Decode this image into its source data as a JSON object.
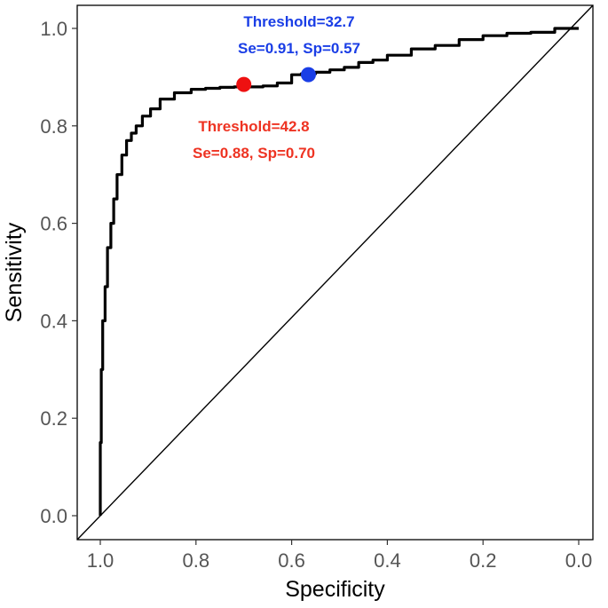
{
  "chart_data": {
    "type": "line",
    "xlabel": "Specificity",
    "ylabel": "Sensitivity",
    "xlim": [
      1.0,
      0.0
    ],
    "ylim": [
      0.0,
      1.0
    ],
    "x_reversed": true,
    "x_ticks": [
      1.0,
      0.8,
      0.6,
      0.4,
      0.2,
      0.0
    ],
    "x_tick_labels": [
      "1.0",
      "0.8",
      "0.6",
      "0.4",
      "0.2",
      "0.0"
    ],
    "y_ticks": [
      0.0,
      0.2,
      0.4,
      0.6,
      0.8,
      1.0
    ],
    "y_tick_labels": [
      "0.0",
      "0.2",
      "0.4",
      "0.6",
      "0.8",
      "1.0"
    ],
    "grid": false,
    "reference_line": {
      "x": [
        1.0,
        0.0
      ],
      "y": [
        0.0,
        1.0
      ],
      "color": "#000000"
    },
    "series": [
      {
        "color": "#000000",
        "x": [
          1.0,
          0.998,
          0.995,
          0.99,
          0.985,
          0.978,
          0.972,
          0.965,
          0.955,
          0.945,
          0.935,
          0.925,
          0.912,
          0.895,
          0.875,
          0.845,
          0.81,
          0.78,
          0.75,
          0.72,
          0.69,
          0.66,
          0.63,
          0.6,
          0.58,
          0.55,
          0.52,
          0.49,
          0.46,
          0.43,
          0.4,
          0.35,
          0.3,
          0.25,
          0.2,
          0.15,
          0.1,
          0.05,
          0.0
        ],
        "y": [
          0.0,
          0.15,
          0.3,
          0.4,
          0.47,
          0.55,
          0.6,
          0.65,
          0.7,
          0.74,
          0.77,
          0.785,
          0.8,
          0.82,
          0.835,
          0.855,
          0.868,
          0.875,
          0.877,
          0.879,
          0.88,
          0.88,
          0.882,
          0.888,
          0.905,
          0.907,
          0.91,
          0.915,
          0.92,
          0.93,
          0.935,
          0.945,
          0.958,
          0.965,
          0.977,
          0.985,
          0.99,
          0.992,
          1.0
        ]
      }
    ],
    "points": [
      {
        "x": 0.7,
        "y": 0.885,
        "color": "#ee1111"
      },
      {
        "x": 0.565,
        "y": 0.905,
        "color": "#1a3ee6"
      }
    ],
    "annotations": [
      {
        "lines": [
          "Threshold=32.7",
          "Se=0.91, Sp=0.57"
        ],
        "color": "#1a3ee6",
        "x": 0.57,
        "y": 1.0,
        "placement": "above-right-point"
      },
      {
        "lines": [
          "Threshold=42.8",
          "Se=0.88, Sp=0.70"
        ],
        "color": "#ee3322",
        "x": 0.7,
        "y": 0.8,
        "placement": "below-left-point"
      }
    ]
  }
}
